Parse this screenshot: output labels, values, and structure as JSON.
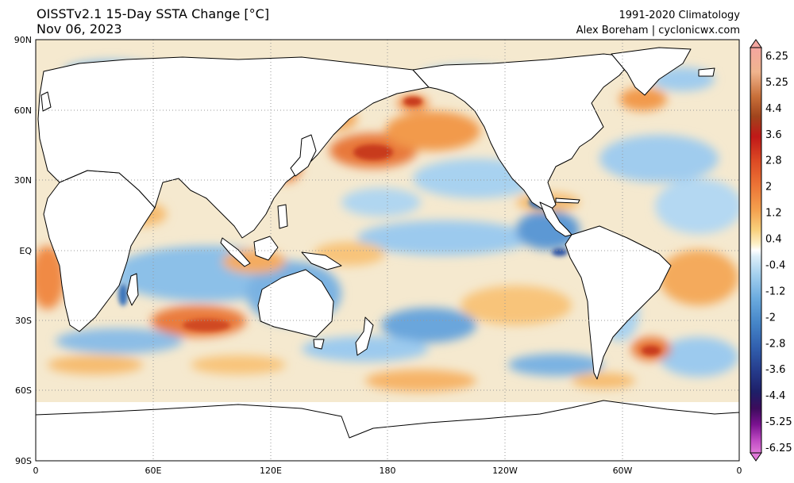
{
  "header": {
    "title_line1": "OISSTv2.1 15-Day SSTA Change [°C]",
    "title_line2": "Nov 06, 2023",
    "credit_line1": "1991-2020 Climatology",
    "credit_line2": "Alex Boreham | cyclonicwx.com"
  },
  "map": {
    "projection": "equirectangular",
    "lat_labels": [
      "90N",
      "60N",
      "30N",
      "EQ",
      "30S",
      "60S",
      "90S"
    ],
    "lat_values": [
      90,
      60,
      30,
      0,
      -30,
      -60,
      -90
    ],
    "lon_labels": [
      "0",
      "60E",
      "120E",
      "180",
      "120W",
      "60W",
      "0"
    ],
    "lon_values": [
      0,
      60,
      120,
      180,
      240,
      300,
      360
    ],
    "land_color": "#ffffff",
    "coastline_color": "#000000",
    "gridline_style": "dotted"
  },
  "colorbar": {
    "tick_labels": [
      "6.25",
      "5.25",
      "4.4",
      "3.6",
      "2.8",
      "2",
      "1.2",
      "0.4",
      "-0.4",
      "-1.2",
      "-2",
      "-2.8",
      "-3.6",
      "-4.4",
      "-5.25",
      "-6.25"
    ],
    "colors": [
      "#f4a6a0",
      "#f0b48e",
      "#e8a070",
      "#a0441c",
      "#c01818",
      "#d83a20",
      "#e8642e",
      "#f08a3c",
      "#f4aa54",
      "#f6c86a",
      "#fae094",
      "#fdf0c8",
      "#ffffff",
      "#c8e2f4",
      "#9acbec",
      "#6fb0e0",
      "#4f93d0",
      "#3b74bc",
      "#2e55a4",
      "#243888",
      "#201f6c",
      "#3a0c5c",
      "#6a0a80",
      "#9c1ea8",
      "#c84cc8",
      "#e078d8"
    ]
  }
}
